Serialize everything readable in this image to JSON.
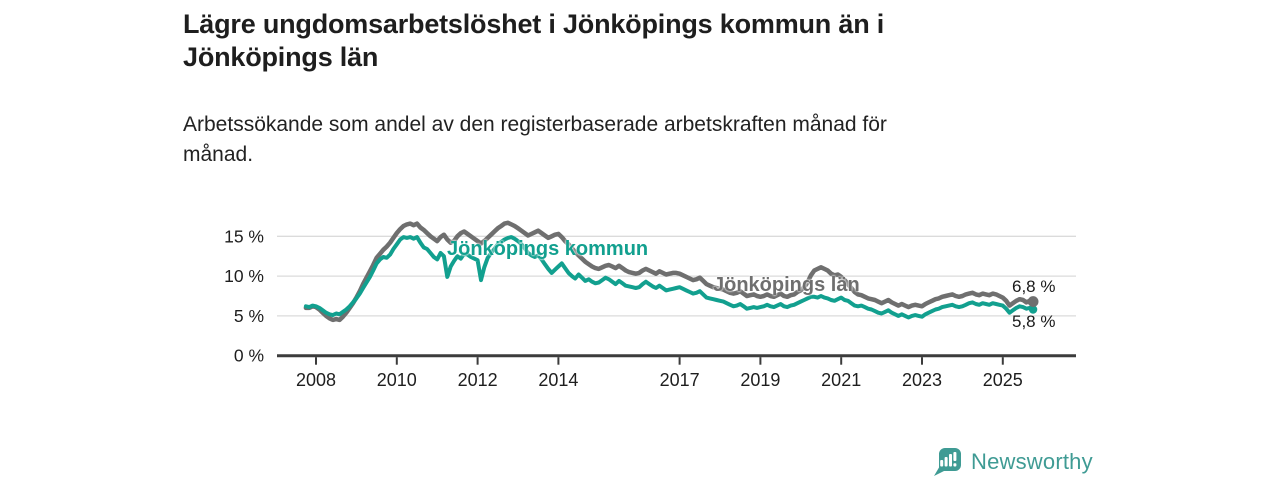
{
  "header": {
    "title": {
      "line1": "Lägre ungdomsarbetslöshet i Jönköpings kommun än i",
      "line2": "Jönköpings län"
    },
    "subtitle": {
      "line1": "Arbetssökande som andel av den registerbaserade arbetskraften månad för",
      "line2": "månad."
    }
  },
  "chart_data": {
    "type": "line",
    "title": "Lägre ungdomsarbetslöshet i Jönköpings kommun än i Jönköpings län",
    "subtitle": "Arbetssökande som andel av den registerbaserade arbetskraften månad för månad.",
    "unit": "%",
    "grid": "horizontal",
    "x_start_year": 2007.75,
    "x_step_years": 0.0833333,
    "x_tick_years": [
      2008,
      2010,
      2012,
      2014,
      2017,
      2019,
      2021,
      2023,
      2025
    ],
    "x_tick_labels": [
      "2008",
      "2010",
      "2012",
      "2014",
      "2017",
      "2019",
      "2021",
      "2023",
      "2025"
    ],
    "y_tick_values": [
      0,
      5,
      10,
      15
    ],
    "y_tick_labels": [
      "0 %",
      "5 %",
      "10 %",
      "15 %"
    ],
    "ylim": [
      0,
      17.5
    ],
    "series": [
      {
        "name": "Jönköpings län",
        "color": "#6F6F6F",
        "end_value": 6.8,
        "end_label": "6,8 %",
        "values": [
          6.0,
          6.0,
          6.2,
          6.1,
          5.8,
          5.4,
          5.0,
          4.7,
          4.5,
          4.6,
          4.5,
          4.9,
          5.4,
          6.0,
          6.6,
          7.3,
          8.1,
          9.0,
          9.8,
          10.6,
          11.4,
          12.3,
          12.8,
          13.3,
          13.7,
          14.2,
          14.8,
          15.4,
          15.9,
          16.3,
          16.5,
          16.6,
          16.4,
          16.6,
          16.1,
          15.8,
          15.4,
          15.0,
          14.7,
          14.4,
          14.9,
          15.2,
          14.6,
          14.2,
          14.4,
          15.0,
          15.4,
          15.6,
          15.3,
          15.0,
          14.7,
          14.4,
          14.1,
          14.4,
          14.8,
          15.2,
          15.6,
          16.0,
          16.3,
          16.6,
          16.7,
          16.5,
          16.3,
          16.0,
          15.7,
          15.4,
          15.1,
          15.3,
          15.5,
          15.7,
          15.4,
          15.1,
          14.8,
          15.0,
          15.2,
          15.3,
          14.9,
          14.4,
          14.0,
          13.5,
          13.0,
          12.6,
          12.2,
          11.8,
          11.5,
          11.2,
          11.0,
          10.9,
          11.1,
          11.3,
          11.4,
          11.2,
          11.0,
          11.3,
          11.0,
          10.7,
          10.5,
          10.4,
          10.3,
          10.4,
          10.7,
          10.9,
          10.7,
          10.5,
          10.3,
          10.6,
          10.4,
          10.2,
          10.3,
          10.4,
          10.4,
          10.3,
          10.1,
          9.9,
          9.7,
          9.5,
          9.6,
          9.8,
          9.4,
          9.0,
          8.8,
          8.6,
          8.5,
          8.4,
          8.3,
          8.1,
          7.9,
          7.8,
          7.9,
          8.1,
          7.8,
          7.5,
          7.6,
          7.7,
          7.5,
          7.4,
          7.5,
          7.7,
          7.5,
          7.4,
          7.6,
          7.8,
          7.5,
          7.4,
          7.6,
          7.7,
          8.0,
          8.2,
          8.6,
          9.2,
          10.1,
          10.7,
          10.9,
          11.1,
          10.9,
          10.7,
          10.3,
          10.1,
          10.2,
          9.9,
          9.5,
          9.0,
          8.5,
          8.0,
          7.7,
          7.6,
          7.4,
          7.2,
          7.1,
          7.0,
          6.8,
          6.6,
          6.8,
          7.0,
          6.7,
          6.5,
          6.3,
          6.5,
          6.3,
          6.1,
          6.3,
          6.4,
          6.3,
          6.2,
          6.5,
          6.7,
          6.9,
          7.1,
          7.2,
          7.4,
          7.5,
          7.6,
          7.7,
          7.5,
          7.4,
          7.5,
          7.7,
          7.8,
          7.9,
          7.7,
          7.6,
          7.8,
          7.7,
          7.6,
          7.8,
          7.7,
          7.5,
          7.3,
          6.9,
          6.3,
          6.6,
          6.9,
          7.1,
          7.0,
          6.7,
          6.9,
          6.8
        ]
      },
      {
        "name": "Jönköpings kommun",
        "color": "#12A08F",
        "end_value": 5.8,
        "end_label": "5,8 %",
        "values": [
          6.2,
          6.1,
          6.3,
          6.2,
          6.0,
          5.7,
          5.4,
          5.2,
          5.1,
          5.3,
          5.2,
          5.5,
          5.8,
          6.2,
          6.7,
          7.2,
          7.8,
          8.5,
          9.2,
          9.9,
          10.7,
          11.6,
          12.1,
          12.4,
          12.3,
          12.7,
          13.4,
          14.0,
          14.6,
          14.9,
          14.8,
          14.9,
          14.7,
          14.9,
          14.2,
          13.6,
          13.4,
          12.9,
          12.4,
          12.1,
          12.9,
          12.5,
          9.9,
          11.2,
          11.9,
          12.5,
          12.2,
          12.8,
          12.7,
          12.4,
          12.2,
          12.0,
          9.5,
          11.1,
          12.3,
          12.9,
          13.4,
          14.0,
          14.3,
          14.6,
          14.8,
          14.9,
          14.7,
          14.4,
          14.0,
          13.5,
          12.9,
          12.6,
          12.4,
          12.6,
          12.1,
          11.5,
          10.9,
          10.4,
          10.8,
          11.2,
          11.6,
          11.0,
          10.4,
          10.0,
          9.7,
          10.2,
          9.8,
          9.4,
          9.6,
          9.3,
          9.1,
          9.2,
          9.5,
          9.8,
          9.6,
          9.3,
          9.0,
          9.4,
          9.1,
          8.8,
          8.7,
          8.6,
          8.5,
          8.6,
          9.0,
          9.3,
          9.0,
          8.7,
          8.5,
          8.8,
          8.5,
          8.2,
          8.3,
          8.4,
          8.5,
          8.6,
          8.4,
          8.2,
          8.0,
          7.8,
          7.9,
          8.1,
          7.7,
          7.3,
          7.2,
          7.1,
          7.0,
          6.9,
          6.8,
          6.6,
          6.4,
          6.2,
          6.3,
          6.5,
          6.2,
          5.9,
          6.0,
          6.1,
          6.0,
          6.1,
          6.2,
          6.4,
          6.2,
          6.1,
          6.3,
          6.5,
          6.2,
          6.1,
          6.3,
          6.4,
          6.6,
          6.8,
          7.0,
          7.2,
          7.4,
          7.4,
          7.3,
          7.5,
          7.3,
          7.2,
          7.0,
          6.9,
          7.1,
          7.3,
          7.0,
          6.9,
          6.6,
          6.3,
          6.2,
          6.3,
          6.1,
          5.9,
          5.8,
          5.6,
          5.4,
          5.3,
          5.5,
          5.7,
          5.4,
          5.2,
          5.0,
          5.2,
          5.0,
          4.8,
          5.0,
          5.1,
          5.0,
          4.9,
          5.2,
          5.4,
          5.6,
          5.8,
          5.9,
          6.1,
          6.2,
          6.3,
          6.4,
          6.2,
          6.1,
          6.2,
          6.4,
          6.6,
          6.7,
          6.5,
          6.4,
          6.6,
          6.5,
          6.4,
          6.6,
          6.5,
          6.4,
          6.3,
          5.9,
          5.4,
          5.7,
          6.0,
          6.2,
          6.1,
          5.9,
          6.0,
          5.8
        ]
      }
    ],
    "legend_position": "inline-labels"
  },
  "inline_labels": {
    "kommun": "Jönköpings kommun",
    "lan": "Jönköpings län"
  },
  "end_labels": {
    "top": "6,8 %",
    "bottom": "5,8 %"
  },
  "footer": {
    "brand": "Newsworthy",
    "brand_color": "#3F9B94"
  },
  "colors": {
    "kommun": "#12A08F",
    "lan": "#6F6F6F",
    "gridline": "#DBDBDB",
    "axis": "#3C3C3C",
    "text": "#1E1E1E"
  }
}
